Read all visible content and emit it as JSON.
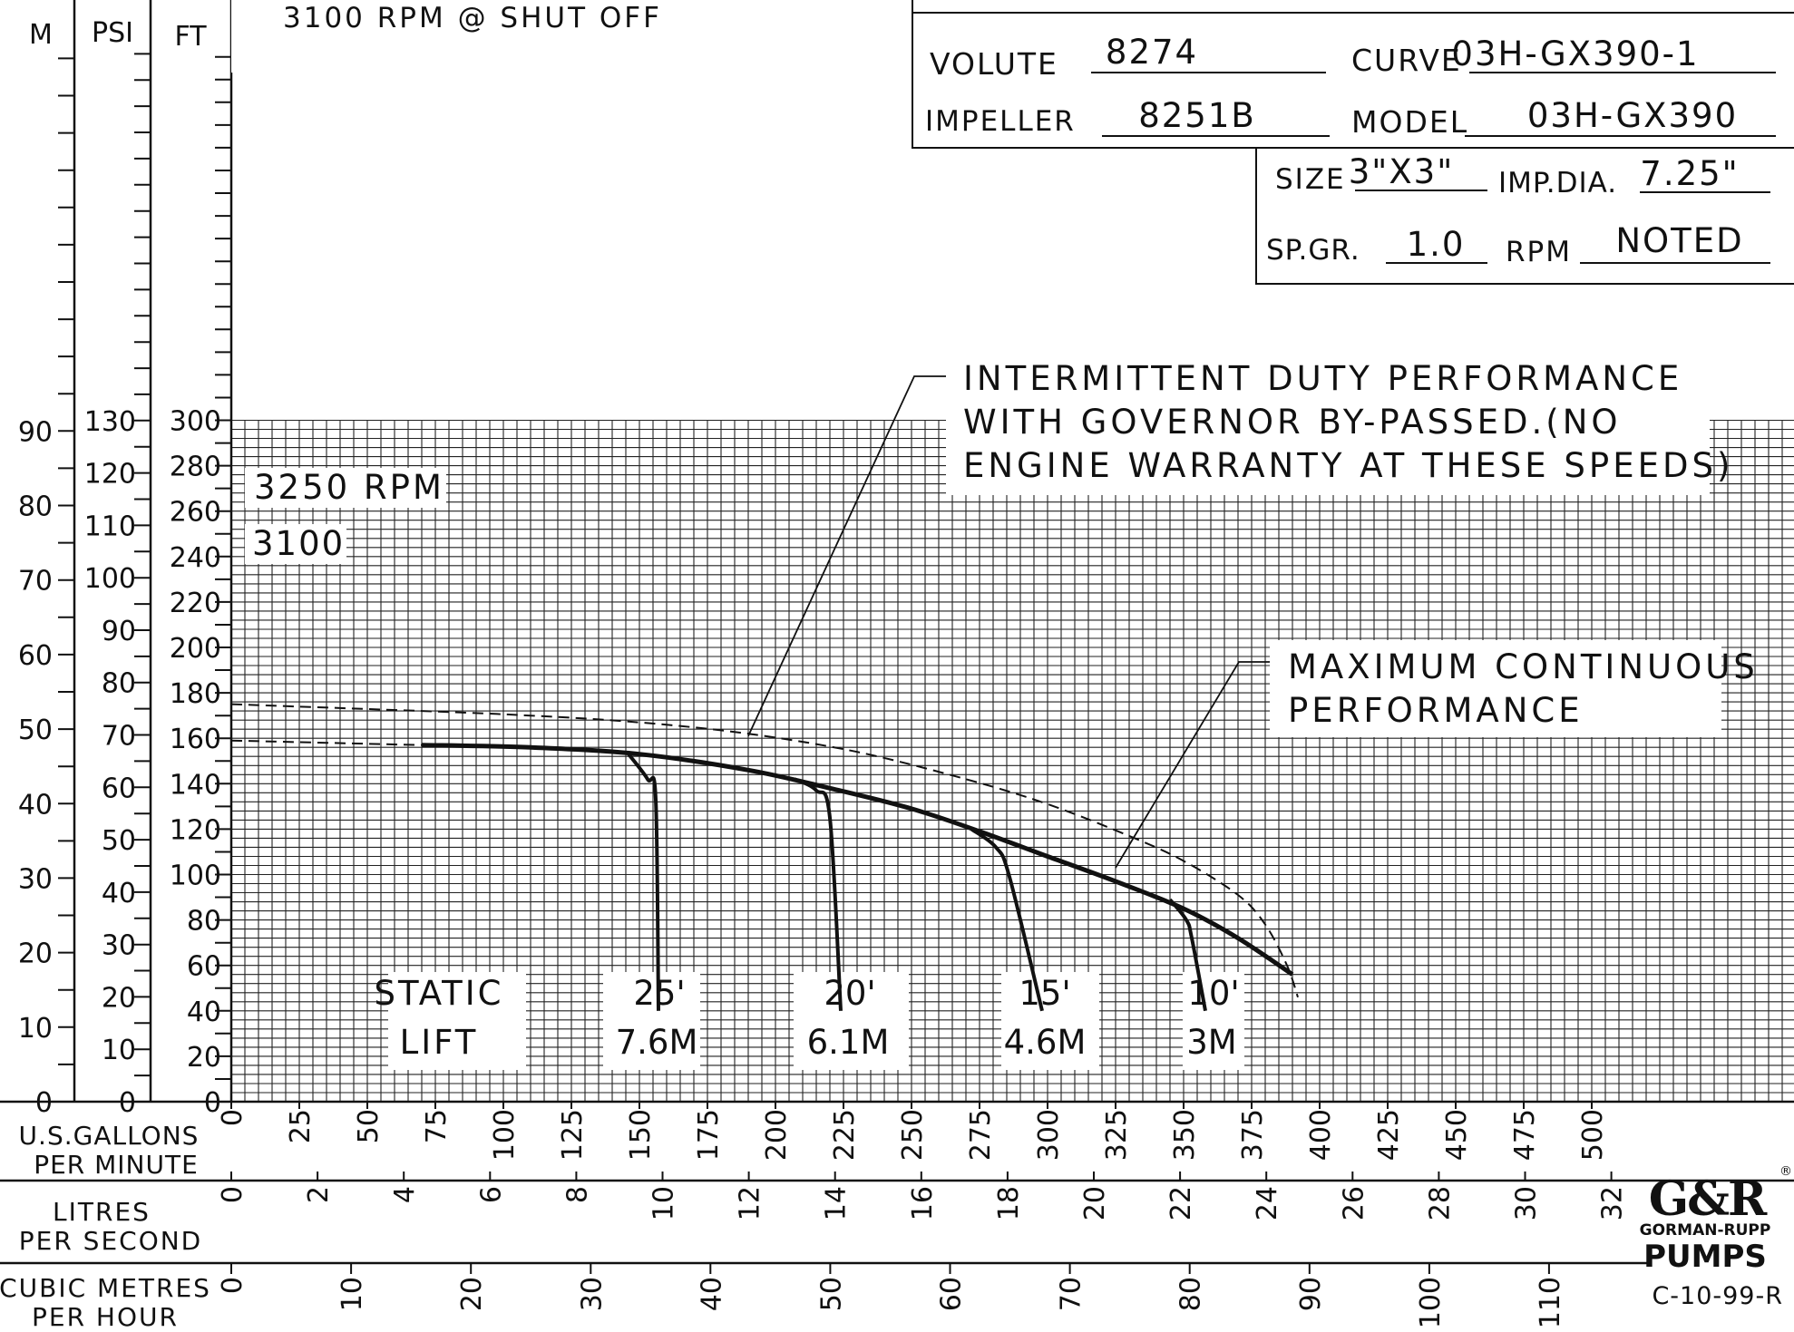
{
  "chart_data": {
    "type": "line",
    "title": "3100 RPM @ SHUT OFF",
    "spec": {
      "volute_label": "VOLUTE",
      "volute": "8274",
      "curve_label": "CURVE",
      "curve": "03H-GX390-1",
      "impeller_label": "IMPELLER",
      "impeller": "8251B",
      "model_label": "MODEL",
      "model": "03H-GX390",
      "size_label": "SIZE",
      "size": "3\"X3\"",
      "impdia_label": "IMP.DIA.",
      "impdia": "7.25\"",
      "spgr_label": "SP.GR.",
      "spgr": "1.0",
      "rpm_label": "RPM",
      "rpm": "NOTED"
    },
    "y_axes": {
      "m": {
        "label": "M",
        "ticks": [
          "0",
          "10",
          "20",
          "30",
          "40",
          "50",
          "60",
          "70",
          "80",
          "90"
        ]
      },
      "psi": {
        "label": "PSI",
        "ticks": [
          "0",
          "10",
          "20",
          "30",
          "40",
          "50",
          "60",
          "70",
          "80",
          "90",
          "100",
          "110",
          "120",
          "130"
        ]
      },
      "ft": {
        "label": "FT",
        "ticks": [
          "0",
          "20",
          "40",
          "60",
          "80",
          "100",
          "120",
          "140",
          "160",
          "180",
          "200",
          "220",
          "240",
          "260",
          "280",
          "300"
        ]
      }
    },
    "x_axes": {
      "gpm": {
        "label1": "U.S.GALLONS",
        "label2": "PER MINUTE",
        "ticks": [
          "0",
          "25",
          "50",
          "75",
          "100",
          "125",
          "150",
          "175",
          "200",
          "225",
          "250",
          "275",
          "300",
          "325",
          "350",
          "375",
          "400",
          "425",
          "450",
          "475",
          "500"
        ]
      },
      "lps": {
        "label1": "LITRES",
        "label2": "PER SECOND",
        "ticks": [
          "0",
          "2",
          "4",
          "6",
          "8",
          "10",
          "12",
          "14",
          "16",
          "18",
          "20",
          "22",
          "24",
          "26",
          "28",
          "30",
          "32"
        ]
      },
      "cmh": {
        "label1": "CUBIC METRES",
        "label2": "PER HOUR",
        "ticks": [
          "0",
          "10",
          "20",
          "30",
          "40",
          "50",
          "60",
          "70",
          "80",
          "90",
          "100",
          "110"
        ]
      }
    },
    "xlim": [
      0,
      525
    ],
    "ylim": [
      0,
      300
    ],
    "grid": true,
    "series": [
      {
        "name": "3250 RPM",
        "style": "dashed",
        "x": [
          0,
          70,
          110,
          150,
          190,
          230,
          270,
          300,
          330,
          350,
          370,
          380,
          388,
          392
        ],
        "y": [
          175,
          172,
          170,
          167,
          162,
          154,
          142,
          131,
          117,
          106,
          91,
          78,
          60,
          46
        ]
      },
      {
        "name": "3100",
        "style": "dashed",
        "x": [
          0,
          70
        ],
        "y": [
          159,
          157
        ]
      },
      {
        "name": "3100",
        "style": "solid",
        "x": [
          70,
          110,
          150,
          190,
          220,
          250,
          275,
          300,
          325,
          350,
          370,
          390
        ],
        "y": [
          157,
          156,
          153,
          146,
          138,
          129,
          119,
          108,
          97,
          85,
          72,
          56
        ]
      },
      {
        "name": "25'",
        "style": "solid",
        "x": [
          146,
          153,
          156,
          157
        ],
        "y": [
          153,
          142,
          133,
          40
        ]
      },
      {
        "name": "20'",
        "style": "solid",
        "x": [
          207,
          215,
          220,
          224
        ],
        "y": [
          142,
          137,
          125,
          40
        ]
      },
      {
        "name": "15'",
        "style": "solid",
        "x": [
          272,
          281,
          286,
          298
        ],
        "y": [
          120,
          112,
          99,
          40
        ]
      },
      {
        "name": "10'",
        "style": "solid",
        "x": [
          345,
          351,
          353,
          358
        ],
        "y": [
          89,
          80,
          72,
          40
        ]
      }
    ],
    "series_labels": {
      "rpm3250": "3250 RPM",
      "rpm3100": "3100"
    },
    "annotations": {
      "intermittent": [
        "INTERMITTENT DUTY PERFORMANCE",
        "WITH GOVERNOR BY-PASSED.(NO",
        "ENGINE WARRANTY AT THESE SPEEDS)"
      ],
      "continuous": [
        "MAXIMUM CONTINUOUS",
        "PERFORMANCE"
      ],
      "static_lift": [
        "STATIC",
        "LIFT"
      ],
      "lifts": [
        {
          "ft": "25'",
          "m": "7.6M"
        },
        {
          "ft": "20'",
          "m": "6.1M"
        },
        {
          "ft": "15'",
          "m": "4.6M"
        },
        {
          "ft": "10'",
          "m": "3M"
        }
      ]
    },
    "logo": {
      "mark": "G&R",
      "line1": "GORMAN-RUPP",
      "line2": "PUMPS",
      "reg": "®"
    },
    "code": "C-10-99-R"
  }
}
